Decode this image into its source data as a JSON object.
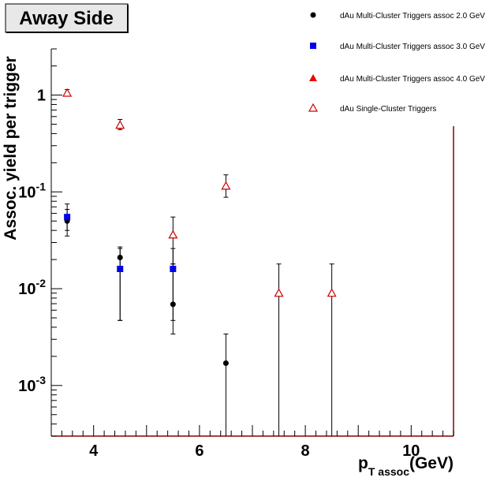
{
  "chart_data": {
    "type": "scatter",
    "title": "Away Side",
    "xlabel": "p",
    "xlabel_sub": "T assoc",
    "xlabel_unit": "(GeV)",
    "ylabel": "Assoc. yield per trigger",
    "xlim": [
      3.2,
      10.8
    ],
    "ylim": [
      0.0003,
      3.0
    ],
    "yscale": "log",
    "grid": false,
    "legend_position": "top-right",
    "x_ticks": [
      4,
      6,
      8,
      10
    ],
    "y_ticks": [
      {
        "value": 0.001,
        "base": "10",
        "exp": "-3"
      },
      {
        "value": 0.01,
        "base": "10",
        "exp": "-2"
      },
      {
        "value": 0.1,
        "base": "10",
        "exp": "-1"
      },
      {
        "value": 1,
        "base": "1",
        "exp": ""
      }
    ],
    "series": [
      {
        "name": "dAu Multi-Cluster Triggers assoc 2.0 GeV",
        "marker": "circle",
        "color": "#000000",
        "points": [
          {
            "x": 3.5,
            "y": 0.05,
            "lo": 0.035,
            "hi": 0.066
          },
          {
            "x": 4.5,
            "y": 0.021,
            "lo": 0.0047,
            "hi": 0.027
          },
          {
            "x": 5.5,
            "y": 0.0069,
            "lo": 0.0034,
            "hi": 0.018
          },
          {
            "x": 6.5,
            "y": 0.0017,
            "lo": 0.0003,
            "hi": 0.0034
          }
        ]
      },
      {
        "name": "dAu Multi-Cluster Triggers assoc 3.0 GeV",
        "marker": "square",
        "color": "#0000ee",
        "points": [
          {
            "x": 3.5,
            "y": 0.055,
            "lo": 0.04,
            "hi": 0.075
          },
          {
            "x": 4.5,
            "y": 0.016,
            "lo": 0.0047,
            "hi": 0.026
          },
          {
            "x": 5.5,
            "y": 0.016,
            "lo": 0.0047,
            "hi": 0.026
          }
        ]
      },
      {
        "name": "dAu Multi-Cluster Triggers assoc 4.0 GeV",
        "marker": "triangle-filled",
        "color": "#ee0000",
        "points": []
      },
      {
        "name": "dAu Single-Cluster Triggers",
        "marker": "triangle-open",
        "color": "#cc0000",
        "points": [
          {
            "x": 3.5,
            "y": 1.05,
            "lo": 0.98,
            "hi": 1.14
          },
          {
            "x": 4.5,
            "y": 0.49,
            "lo": 0.44,
            "hi": 0.56
          },
          {
            "x": 5.5,
            "y": 0.036,
            "lo": 0.018,
            "hi": 0.055
          },
          {
            "x": 6.5,
            "y": 0.115,
            "lo": 0.088,
            "hi": 0.15
          },
          {
            "x": 7.5,
            "y": 0.009,
            "lo": 0.0003,
            "hi": 0.018
          },
          {
            "x": 8.5,
            "y": 0.009,
            "lo": 0.0003,
            "hi": 0.018
          }
        ]
      }
    ]
  }
}
